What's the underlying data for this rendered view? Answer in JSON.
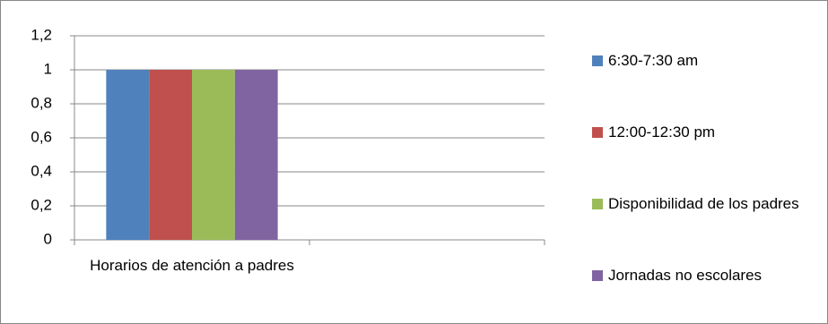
{
  "chart_data": {
    "type": "bar",
    "categories": [
      "Horarios de atención a padres",
      null
    ],
    "series": [
      {
        "name": "6:30-7:30 am",
        "color": "#4f81bd",
        "values": [
          1,
          null
        ]
      },
      {
        "name": "12:00-12:30 pm",
        "color": "#c0504d",
        "values": [
          1,
          null
        ]
      },
      {
        "name": "Disponibilidad de los padres",
        "color": "#9bbb59",
        "values": [
          1,
          null
        ]
      },
      {
        "name": "Jornadas no escolares",
        "color": "#8064a2",
        "values": [
          1,
          null
        ]
      }
    ],
    "ylim": [
      0,
      1.2
    ],
    "yticks": [
      0,
      {
        "value": 0.2,
        "label": "0,2"
      },
      {
        "value": 0.4,
        "label": "0,4"
      },
      {
        "value": 0.6,
        "label": "0,6"
      },
      {
        "value": 0.8,
        "label": "0,8"
      },
      1,
      {
        "value": 1.2,
        "label": "1,2"
      }
    ],
    "grid": true,
    "legend": "right"
  }
}
